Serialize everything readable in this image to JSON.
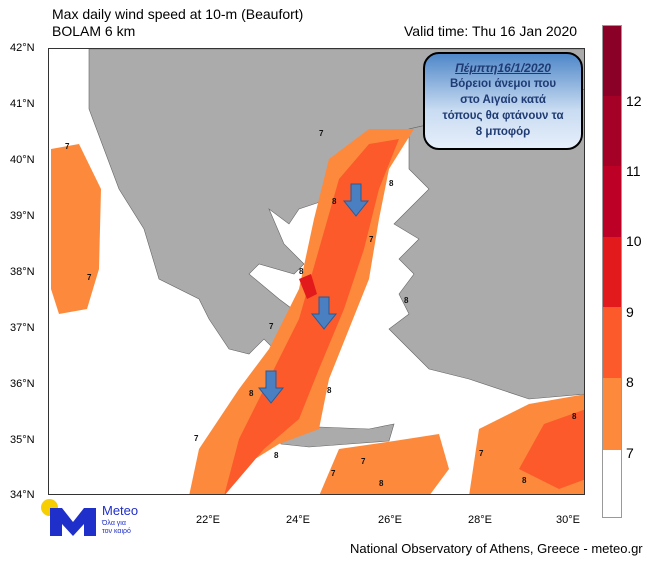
{
  "title_line1": "Max daily wind speed at 10-m (Beaufort)",
  "title_line2": "BOLAM 6 km",
  "valid_time": "Valid time: Thu 16 Jan 2020",
  "lat_labels": [
    "42°N",
    "41°N",
    "40°N",
    "39°N",
    "38°N",
    "37°N",
    "36°N",
    "35°N",
    "34°N"
  ],
  "lon_labels": [
    "22°E",
    "24°E",
    "26°E",
    "28°E",
    "30°E"
  ],
  "callout": {
    "date": "Πέμπτη16/1/2020",
    "lines": [
      "Βόρειοι άνεμοι που",
      "στο Αιγαίο κατά",
      "τόπους θα φτάνουν τα",
      "8 μποφόρ"
    ]
  },
  "colorbar": {
    "labels": [
      "12",
      "11",
      "10",
      "9",
      "8",
      "7"
    ],
    "colors": [
      "#8b0026",
      "#a50026",
      "#bd0026",
      "#e31a1c",
      "#fc5a2a",
      "#fd8a3c",
      "#ffffff"
    ]
  },
  "contour_labels": [
    "7",
    "7",
    "7",
    "8",
    "8",
    "7",
    "8",
    "7",
    "8",
    "8",
    "8",
    "7",
    "8",
    "7",
    "7",
    "8",
    "7",
    "8",
    "8"
  ],
  "logo": {
    "name": "Meteo",
    "tagline1": "Όλα για",
    "tagline2": "τον καιρό"
  },
  "footer": "National Observatory of Athens, Greece - meteo.gr",
  "colors": {
    "land": "#ababab",
    "wind7": "#fd8a3c",
    "wind8": "#fc5a2a",
    "wind9": "#e31a1c",
    "arrow": "#4a7fc1"
  }
}
